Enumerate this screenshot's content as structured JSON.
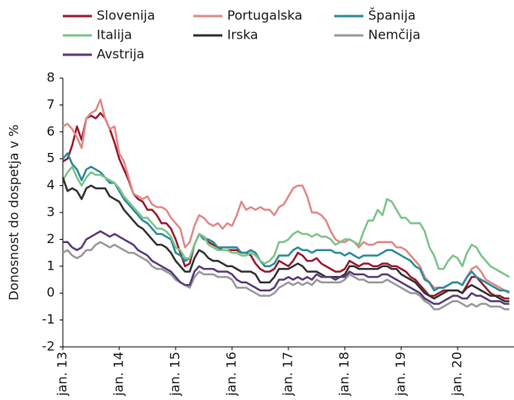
{
  "chart_data": {
    "type": "line",
    "y_label": "Donosnost do dospetja v %",
    "categories": [
      "jan. 13",
      null,
      null,
      null,
      null,
      null,
      null,
      null,
      null,
      null,
      null,
      null,
      "jan. 14",
      null,
      null,
      null,
      null,
      null,
      null,
      null,
      null,
      null,
      null,
      null,
      "jan. 15",
      null,
      null,
      null,
      null,
      null,
      null,
      null,
      null,
      null,
      null,
      null,
      "jan. 16",
      null,
      null,
      null,
      null,
      null,
      null,
      null,
      null,
      null,
      null,
      null,
      "jan. 17",
      null,
      null,
      null,
      null,
      null,
      null,
      null,
      null,
      null,
      null,
      null,
      "jan. 18",
      null,
      null,
      null,
      null,
      null,
      null,
      null,
      null,
      null,
      null,
      null,
      "jan. 19",
      null,
      null,
      null,
      null,
      null,
      null,
      null,
      null,
      null,
      null,
      null,
      "jan. 20",
      null,
      null,
      null,
      null,
      null,
      null,
      null,
      null,
      null,
      null,
      null
    ],
    "ylim": [
      -2,
      8
    ],
    "yticks": [
      -2,
      -1,
      0,
      1,
      2,
      3,
      4,
      5,
      6,
      7,
      8
    ],
    "grid": false,
    "legend": "top",
    "series": [
      {
        "name": "Slovenija",
        "color": "#9b1b30",
        "values": [
          4.9,
          5.0,
          5.5,
          6.2,
          5.7,
          6.5,
          6.6,
          6.5,
          6.7,
          6.5,
          6.1,
          5.6,
          5.0,
          4.6,
          4.2,
          3.7,
          3.5,
          3.4,
          3.1,
          3.1,
          2.9,
          2.6,
          2.6,
          2.4,
          2.0,
          1.5,
          1.0,
          1.1,
          1.8,
          2.2,
          2.1,
          1.9,
          1.8,
          1.7,
          1.6,
          1.6,
          1.6,
          1.6,
          1.5,
          1.5,
          1.4,
          1.1,
          0.9,
          0.8,
          0.8,
          0.9,
          1.2,
          1.1,
          1.0,
          1.2,
          1.5,
          1.4,
          1.2,
          1.2,
          1.3,
          1.1,
          1.0,
          0.9,
          0.8,
          0.8,
          0.9,
          1.2,
          1.1,
          1.0,
          1.1,
          1.1,
          1.0,
          1.0,
          1.1,
          1.1,
          1.0,
          1.0,
          0.9,
          0.8,
          0.6,
          0.5,
          0.3,
          0.1,
          -0.1,
          -0.1,
          0.0,
          0.1,
          0.1,
          0.1,
          0.1,
          0.0,
          0.3,
          0.6,
          0.6,
          0.4,
          0.2,
          0.0,
          -0.1,
          -0.1,
          -0.2,
          -0.2
        ]
      },
      {
        "name": "Portugalska",
        "color": "#e08a85",
        "values": [
          6.2,
          6.3,
          6.1,
          5.8,
          5.4,
          6.5,
          6.7,
          6.8,
          7.2,
          6.5,
          6.1,
          6.2,
          5.2,
          4.9,
          4.3,
          3.7,
          3.6,
          3.5,
          3.6,
          3.3,
          3.2,
          3.2,
          3.1,
          2.8,
          2.6,
          2.4,
          1.7,
          1.9,
          2.5,
          2.9,
          2.8,
          2.6,
          2.5,
          2.6,
          2.4,
          2.6,
          2.5,
          2.9,
          3.4,
          3.1,
          3.2,
          3.1,
          3.2,
          3.1,
          3.1,
          2.9,
          3.2,
          3.3,
          3.6,
          3.9,
          4.0,
          4.0,
          3.6,
          3.0,
          3.0,
          2.9,
          2.7,
          2.3,
          2.0,
          1.9,
          1.9,
          2.0,
          1.9,
          1.7,
          1.9,
          1.8,
          1.8,
          1.9,
          1.9,
          1.9,
          1.9,
          1.7,
          1.7,
          1.6,
          1.4,
          1.2,
          1.0,
          0.6,
          0.4,
          0.2,
          0.2,
          0.2,
          0.3,
          0.4,
          0.4,
          0.3,
          0.6,
          0.9,
          1.0,
          0.8,
          0.5,
          0.4,
          0.3,
          0.2,
          0.1,
          0.0
        ]
      },
      {
        "name": "Španija",
        "color": "#2e8a9a",
        "values": [
          5.0,
          5.2,
          4.8,
          4.6,
          4.2,
          4.6,
          4.7,
          4.6,
          4.5,
          4.3,
          4.1,
          4.1,
          3.8,
          3.5,
          3.3,
          3.1,
          2.9,
          2.7,
          2.6,
          2.4,
          2.2,
          2.2,
          2.1,
          2.0,
          1.5,
          1.4,
          1.2,
          1.3,
          1.8,
          2.2,
          2.0,
          2.0,
          1.9,
          1.7,
          1.7,
          1.7,
          1.7,
          1.7,
          1.5,
          1.5,
          1.6,
          1.5,
          1.2,
          1.0,
          1.0,
          1.1,
          1.4,
          1.4,
          1.4,
          1.6,
          1.7,
          1.6,
          1.6,
          1.5,
          1.6,
          1.6,
          1.6,
          1.6,
          1.5,
          1.5,
          1.4,
          1.5,
          1.4,
          1.3,
          1.4,
          1.4,
          1.4,
          1.4,
          1.5,
          1.6,
          1.6,
          1.5,
          1.4,
          1.3,
          1.2,
          1.0,
          0.9,
          0.5,
          0.4,
          0.1,
          0.2,
          0.2,
          0.3,
          0.4,
          0.4,
          0.3,
          0.6,
          0.8,
          0.6,
          0.5,
          0.4,
          0.3,
          0.2,
          0.1,
          0.1,
          0.05
        ]
      },
      {
        "name": "Italija",
        "color": "#7dc48a",
        "values": [
          4.2,
          4.5,
          4.7,
          4.3,
          4.0,
          4.3,
          4.5,
          4.4,
          4.4,
          4.3,
          4.2,
          4.1,
          3.9,
          3.6,
          3.4,
          3.2,
          3.0,
          2.8,
          2.8,
          2.6,
          2.4,
          2.4,
          2.3,
          2.1,
          1.7,
          1.6,
          1.3,
          1.3,
          1.8,
          2.2,
          2.1,
          1.8,
          1.7,
          1.6,
          1.6,
          1.6,
          1.5,
          1.5,
          1.4,
          1.4,
          1.5,
          1.4,
          1.2,
          1.1,
          1.2,
          1.4,
          1.9,
          1.9,
          2.0,
          2.2,
          2.3,
          2.2,
          2.2,
          2.1,
          2.2,
          2.1,
          2.1,
          2.0,
          1.8,
          1.9,
          2.0,
          2.0,
          1.9,
          1.8,
          2.3,
          2.7,
          2.7,
          3.1,
          2.9,
          3.5,
          3.4,
          3.1,
          2.8,
          2.8,
          2.6,
          2.6,
          2.6,
          2.3,
          1.7,
          1.4,
          0.9,
          0.9,
          1.2,
          1.4,
          1.3,
          1.0,
          1.5,
          1.8,
          1.7,
          1.4,
          1.2,
          1.0,
          0.9,
          0.8,
          0.7,
          0.6
        ]
      },
      {
        "name": "Irska",
        "color": "#333333",
        "values": [
          4.3,
          3.8,
          3.9,
          3.8,
          3.5,
          3.9,
          4.0,
          3.9,
          3.9,
          3.9,
          3.6,
          3.5,
          3.4,
          3.1,
          2.9,
          2.7,
          2.5,
          2.4,
          2.2,
          2.0,
          1.8,
          1.8,
          1.7,
          1.5,
          1.2,
          1.0,
          0.8,
          0.8,
          1.3,
          1.6,
          1.5,
          1.3,
          1.2,
          1.2,
          1.1,
          1.0,
          1.0,
          0.9,
          0.8,
          0.8,
          0.8,
          0.7,
          0.4,
          0.4,
          0.4,
          0.6,
          0.9,
          0.9,
          0.9,
          1.0,
          1.1,
          1.0,
          0.8,
          0.8,
          0.8,
          0.7,
          0.6,
          0.6,
          0.6,
          0.6,
          0.7,
          1.0,
          1.0,
          0.9,
          0.9,
          0.9,
          0.9,
          0.9,
          1.0,
          1.0,
          0.9,
          0.9,
          0.7,
          0.6,
          0.5,
          0.4,
          0.2,
          0.0,
          -0.1,
          -0.2,
          -0.1,
          0.0,
          0.1,
          0.1,
          0.1,
          0.0,
          0.2,
          0.3,
          0.2,
          0.1,
          0.0,
          -0.1,
          -0.1,
          -0.2,
          -0.3,
          -0.3
        ]
      },
      {
        "name": "Nemčija",
        "color": "#999999",
        "values": [
          1.5,
          1.6,
          1.4,
          1.3,
          1.4,
          1.6,
          1.6,
          1.8,
          1.9,
          1.8,
          1.7,
          1.8,
          1.7,
          1.6,
          1.5,
          1.5,
          1.4,
          1.3,
          1.2,
          1.0,
          0.9,
          0.9,
          0.8,
          0.7,
          0.5,
          0.4,
          0.3,
          0.2,
          0.6,
          0.8,
          0.7,
          0.7,
          0.7,
          0.6,
          0.6,
          0.6,
          0.5,
          0.2,
          0.2,
          0.2,
          0.1,
          0.0,
          -0.1,
          -0.1,
          -0.1,
          0.0,
          0.2,
          0.3,
          0.4,
          0.3,
          0.4,
          0.3,
          0.4,
          0.3,
          0.5,
          0.4,
          0.4,
          0.4,
          0.4,
          0.4,
          0.5,
          0.7,
          0.6,
          0.5,
          0.5,
          0.4,
          0.4,
          0.4,
          0.4,
          0.5,
          0.4,
          0.3,
          0.2,
          0.1,
          0.0,
          0.0,
          -0.1,
          -0.3,
          -0.4,
          -0.6,
          -0.6,
          -0.5,
          -0.4,
          -0.3,
          -0.3,
          -0.4,
          -0.5,
          -0.4,
          -0.5,
          -0.4,
          -0.4,
          -0.5,
          -0.5,
          -0.5,
          -0.6,
          -0.6
        ]
      },
      {
        "name": "Avstrija",
        "color": "#5b3c7a",
        "values": [
          1.9,
          1.9,
          1.7,
          1.6,
          1.7,
          2.0,
          2.1,
          2.2,
          2.3,
          2.2,
          2.1,
          2.2,
          2.1,
          2.0,
          1.9,
          1.8,
          1.6,
          1.5,
          1.4,
          1.2,
          1.1,
          1.0,
          0.9,
          0.8,
          0.6,
          0.4,
          0.3,
          0.3,
          0.8,
          1.0,
          0.9,
          0.9,
          0.9,
          0.8,
          0.8,
          0.8,
          0.7,
          0.5,
          0.4,
          0.4,
          0.3,
          0.2,
          0.1,
          0.1,
          0.1,
          0.2,
          0.5,
          0.5,
          0.6,
          0.5,
          0.6,
          0.5,
          0.6,
          0.5,
          0.7,
          0.6,
          0.6,
          0.6,
          0.5,
          0.6,
          0.6,
          0.8,
          0.7,
          0.7,
          0.7,
          0.6,
          0.6,
          0.6,
          0.7,
          0.7,
          0.6,
          0.5,
          0.4,
          0.3,
          0.2,
          0.1,
          0.0,
          -0.2,
          -0.3,
          -0.4,
          -0.4,
          -0.3,
          -0.2,
          -0.1,
          -0.1,
          -0.2,
          -0.2,
          0.0,
          -0.1,
          -0.1,
          -0.2,
          -0.3,
          -0.3,
          -0.3,
          -0.4,
          -0.4
        ]
      }
    ]
  }
}
